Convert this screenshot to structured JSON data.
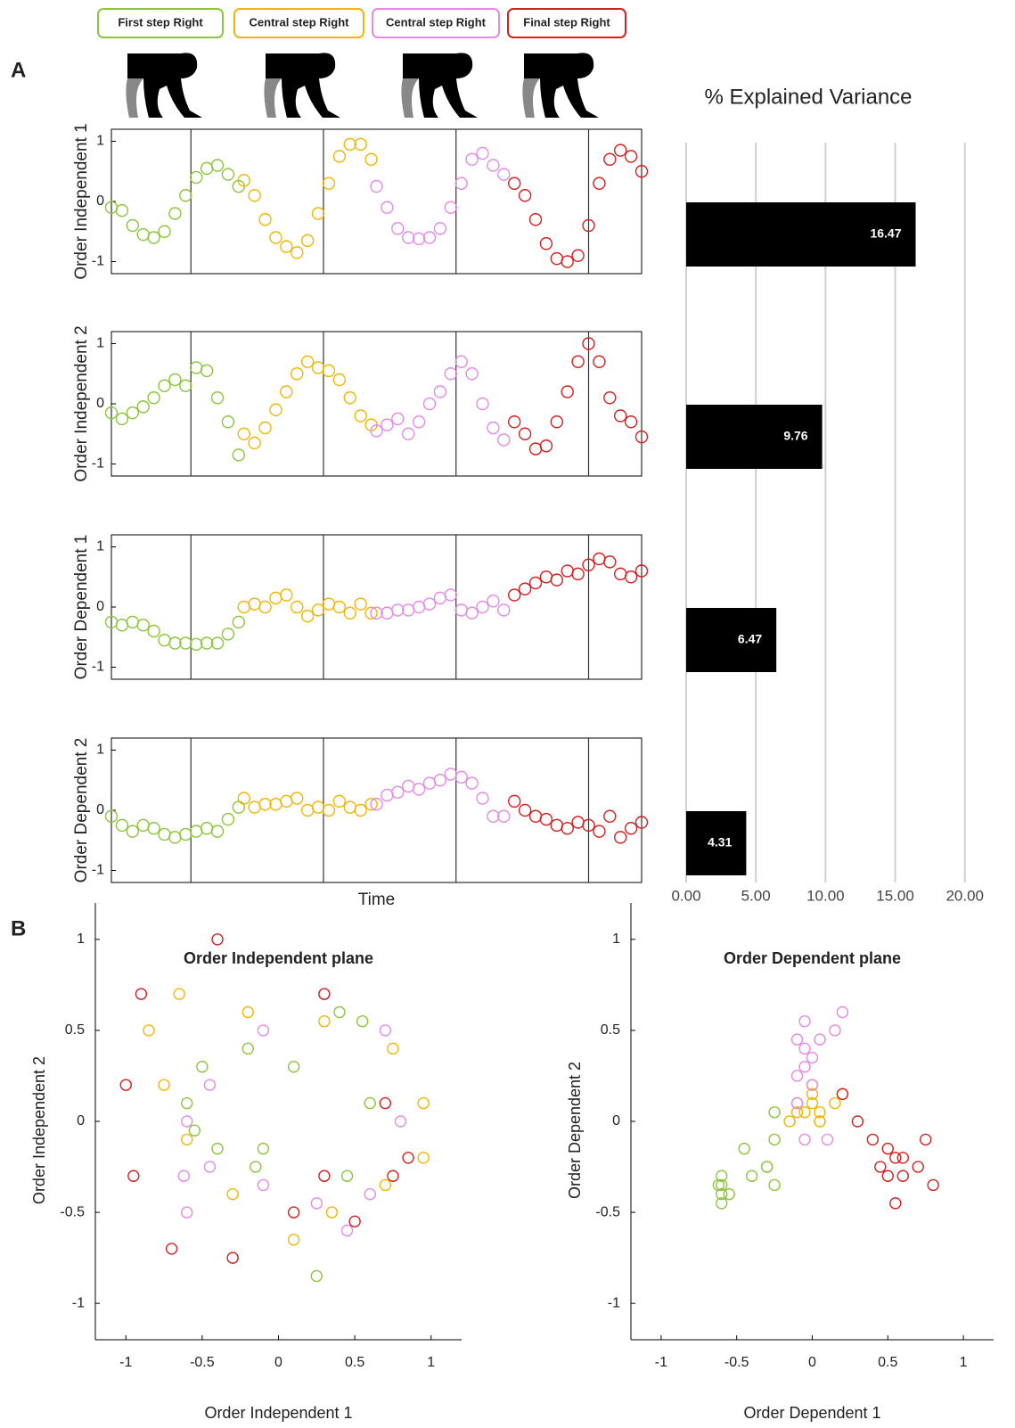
{
  "figure": {
    "label_a": "A",
    "label_b": "B"
  },
  "legend": [
    {
      "name": "First step Right",
      "color": "#8cc63f"
    },
    {
      "name": "Central step Right",
      "color": "#f2b705"
    },
    {
      "name": "Central step Right",
      "color": "#e58ae8"
    },
    {
      "name": "Final step Right",
      "color": "#d42020"
    }
  ],
  "chart_data": [
    {
      "type": "scatter",
      "ylabel": "Order Independent 1",
      "xlim": [
        0,
        100
      ],
      "ylim": [
        -1.2,
        1.2
      ],
      "yticks": [
        -1,
        0,
        1
      ],
      "xlines": [
        15,
        40,
        65,
        90
      ],
      "series": [
        {
          "color": "#8cc63f",
          "x": [
            0,
            2,
            4,
            6,
            8,
            10,
            12,
            14,
            16,
            18,
            20,
            22,
            24
          ],
          "values": [
            -0.1,
            -0.15,
            -0.4,
            -0.55,
            -0.6,
            -0.5,
            -0.2,
            0.1,
            0.4,
            0.55,
            0.6,
            0.45,
            0.25
          ]
        },
        {
          "color": "#f2b705",
          "x": [
            25,
            27,
            29,
            31,
            33,
            35,
            37,
            39,
            41,
            43,
            45,
            47,
            49
          ],
          "values": [
            0.35,
            0.1,
            -0.3,
            -0.6,
            -0.75,
            -0.85,
            -0.65,
            -0.2,
            0.3,
            0.75,
            0.95,
            0.95,
            0.7
          ]
        },
        {
          "color": "#e58ae8",
          "x": [
            50,
            52,
            54,
            56,
            58,
            60,
            62,
            64,
            66,
            68,
            70,
            72,
            74
          ],
          "values": [
            0.25,
            -0.1,
            -0.45,
            -0.6,
            -0.62,
            -0.6,
            -0.45,
            -0.1,
            0.3,
            0.7,
            0.8,
            0.6,
            0.45
          ]
        },
        {
          "color": "#d42020",
          "x": [
            76,
            78,
            80,
            82,
            84,
            86,
            88,
            90,
            92,
            94,
            96,
            98,
            100
          ],
          "values": [
            0.3,
            0.1,
            -0.3,
            -0.7,
            -0.95,
            -1.0,
            -0.9,
            -0.4,
            0.3,
            0.7,
            0.85,
            0.75,
            0.5
          ]
        }
      ]
    },
    {
      "type": "scatter",
      "ylabel": "Order Independent 2",
      "xlim": [
        0,
        100
      ],
      "ylim": [
        -1.2,
        1.2
      ],
      "yticks": [
        -1,
        0,
        1
      ],
      "xlines": [
        15,
        40,
        65,
        90
      ],
      "series": [
        {
          "color": "#8cc63f",
          "x": [
            0,
            2,
            4,
            6,
            8,
            10,
            12,
            14,
            16,
            18,
            20,
            22,
            24
          ],
          "values": [
            -0.15,
            -0.25,
            -0.15,
            -0.05,
            0.1,
            0.3,
            0.4,
            0.3,
            0.6,
            0.55,
            0.1,
            -0.3,
            -0.85
          ]
        },
        {
          "color": "#f2b705",
          "x": [
            25,
            27,
            29,
            31,
            33,
            35,
            37,
            39,
            41,
            43,
            45,
            47,
            49
          ],
          "values": [
            -0.5,
            -0.65,
            -0.4,
            -0.1,
            0.2,
            0.5,
            0.7,
            0.6,
            0.55,
            0.4,
            0.1,
            -0.2,
            -0.35
          ]
        },
        {
          "color": "#e58ae8",
          "x": [
            50,
            52,
            54,
            56,
            58,
            60,
            62,
            64,
            66,
            68,
            70,
            72,
            74
          ],
          "values": [
            -0.45,
            -0.35,
            -0.25,
            -0.5,
            -0.3,
            0.0,
            0.2,
            0.5,
            0.7,
            0.5,
            0.0,
            -0.4,
            -0.6
          ]
        },
        {
          "color": "#d42020",
          "x": [
            76,
            78,
            80,
            82,
            84,
            86,
            88,
            90,
            92,
            94,
            96,
            98,
            100
          ],
          "values": [
            -0.3,
            -0.5,
            -0.75,
            -0.7,
            -0.3,
            0.2,
            0.7,
            1.0,
            0.7,
            0.1,
            -0.2,
            -0.3,
            -0.55
          ]
        }
      ]
    },
    {
      "type": "scatter",
      "ylabel": "Order Dependent 1",
      "xlim": [
        0,
        100
      ],
      "ylim": [
        -1.2,
        1.2
      ],
      "yticks": [
        -1,
        0,
        1
      ],
      "xlines": [
        15,
        40,
        65,
        90
      ],
      "series": [
        {
          "color": "#8cc63f",
          "x": [
            0,
            2,
            4,
            6,
            8,
            10,
            12,
            14,
            16,
            18,
            20,
            22,
            24
          ],
          "values": [
            -0.25,
            -0.3,
            -0.25,
            -0.3,
            -0.4,
            -0.55,
            -0.6,
            -0.6,
            -0.62,
            -0.6,
            -0.6,
            -0.45,
            -0.25
          ]
        },
        {
          "color": "#f2b705",
          "x": [
            25,
            27,
            29,
            31,
            33,
            35,
            37,
            39,
            41,
            43,
            45,
            47,
            49
          ],
          "values": [
            0.0,
            0.05,
            0.0,
            0.15,
            0.2,
            0.0,
            -0.15,
            -0.05,
            0.05,
            0.0,
            -0.1,
            0.05,
            -0.1
          ]
        },
        {
          "color": "#e58ae8",
          "x": [
            50,
            52,
            54,
            56,
            58,
            60,
            62,
            64,
            66,
            68,
            70,
            72,
            74
          ],
          "values": [
            -0.1,
            -0.1,
            -0.05,
            -0.05,
            0.0,
            0.05,
            0.15,
            0.2,
            -0.05,
            -0.1,
            0.0,
            0.1,
            -0.05
          ]
        },
        {
          "color": "#d42020",
          "x": [
            76,
            78,
            80,
            82,
            84,
            86,
            88,
            90,
            92,
            94,
            96,
            98,
            100
          ],
          "values": [
            0.2,
            0.3,
            0.4,
            0.5,
            0.45,
            0.6,
            0.55,
            0.7,
            0.8,
            0.75,
            0.55,
            0.5,
            0.6
          ]
        }
      ]
    },
    {
      "type": "scatter",
      "ylabel": "Order Dependent 2",
      "xlabel": "Time",
      "xlim": [
        0,
        100
      ],
      "ylim": [
        -1.2,
        1.2
      ],
      "yticks": [
        -1,
        0,
        1
      ],
      "xlines": [
        15,
        40,
        65,
        90
      ],
      "series": [
        {
          "color": "#8cc63f",
          "x": [
            0,
            2,
            4,
            6,
            8,
            10,
            12,
            14,
            16,
            18,
            20,
            22,
            24
          ],
          "values": [
            -0.1,
            -0.25,
            -0.35,
            -0.25,
            -0.3,
            -0.4,
            -0.45,
            -0.4,
            -0.35,
            -0.3,
            -0.35,
            -0.15,
            0.05
          ]
        },
        {
          "color": "#f2b705",
          "x": [
            25,
            27,
            29,
            31,
            33,
            35,
            37,
            39,
            41,
            43,
            45,
            47,
            49
          ],
          "values": [
            0.2,
            0.05,
            0.1,
            0.1,
            0.15,
            0.2,
            0.0,
            0.05,
            0.0,
            0.15,
            0.05,
            0.0,
            0.1
          ]
        },
        {
          "color": "#e58ae8",
          "x": [
            50,
            52,
            54,
            56,
            58,
            60,
            62,
            64,
            66,
            68,
            70,
            72,
            74
          ],
          "values": [
            0.1,
            0.25,
            0.3,
            0.4,
            0.35,
            0.45,
            0.5,
            0.6,
            0.55,
            0.45,
            0.2,
            -0.1,
            -0.1
          ]
        },
        {
          "color": "#d42020",
          "x": [
            76,
            78,
            80,
            82,
            84,
            86,
            88,
            90,
            92,
            94,
            96,
            98,
            100
          ],
          "values": [
            0.15,
            0.0,
            -0.1,
            -0.15,
            -0.25,
            -0.3,
            -0.2,
            -0.25,
            -0.35,
            -0.1,
            -0.45,
            -0.3,
            -0.2
          ]
        }
      ]
    },
    {
      "type": "bar",
      "orientation": "horizontal",
      "title": "% Explained Variance",
      "values": [
        16.47,
        9.76,
        6.47,
        4.31
      ],
      "color": "#000000",
      "xlim": [
        0,
        23.6
      ],
      "xticks": [
        {
          "value": 0,
          "label": "0.00"
        },
        {
          "value": 5,
          "label": "5.00"
        },
        {
          "value": 10,
          "label": "10.00"
        },
        {
          "value": 15,
          "label": "15.00"
        },
        {
          "value": 20,
          "label": "20.00"
        }
      ],
      "grid": true
    },
    {
      "type": "plane",
      "title": "Order Independent plane",
      "xlabel": "Order Independent 1",
      "ylabel": "Order Independent 2",
      "xlim": [
        -1.2,
        1.2
      ],
      "ylim": [
        -1.2,
        1.2
      ],
      "xticks": [
        -1,
        -0.5,
        0,
        0.5,
        1
      ],
      "yticks": [
        -1,
        -0.5,
        0,
        0.5,
        1
      ]
    },
    {
      "type": "plane",
      "title": "Order Dependent plane",
      "xlabel": "Order Dependent 1",
      "ylabel": "Order Dependent 2",
      "xlim": [
        -1.2,
        1.2
      ],
      "ylim": [
        -1.2,
        1.2
      ],
      "xticks": [
        -1,
        -0.5,
        0,
        0.5,
        1
      ],
      "yticks": [
        -1,
        -0.5,
        0,
        0.5,
        1
      ]
    }
  ]
}
